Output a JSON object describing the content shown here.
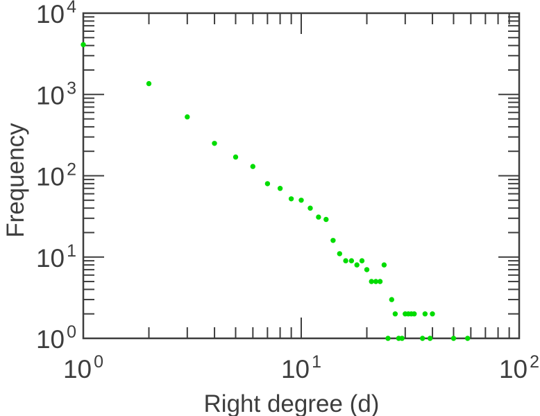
{
  "figure": {
    "background": "#ffffff",
    "axis_color": "#3d3d3d",
    "text_color": "#3d3d3d"
  },
  "chart_data": {
    "type": "scatter",
    "title": "",
    "xlabel": "Right degree (d)",
    "ylabel": "Frequency",
    "x_scale": "log",
    "y_scale": "log",
    "xlim": [
      1,
      100
    ],
    "ylim": [
      1,
      10000
    ],
    "x_tick_exponents": [
      0,
      1,
      2
    ],
    "y_tick_exponents": [
      0,
      1,
      2,
      3,
      4
    ],
    "tick_base": "10",
    "grid": false,
    "legend": null,
    "marker": {
      "shape": "circle",
      "color": "#00DC00",
      "radius_px": 3.7
    },
    "points": [
      [
        1,
        4100
      ],
      [
        2,
        1360
      ],
      [
        3,
        530
      ],
      [
        4,
        250
      ],
      [
        5,
        170
      ],
      [
        6,
        130
      ],
      [
        7,
        80
      ],
      [
        8,
        70
      ],
      [
        9,
        52
      ],
      [
        10,
        50
      ],
      [
        11,
        40
      ],
      [
        12,
        31
      ],
      [
        13,
        29
      ],
      [
        14,
        16
      ],
      [
        15,
        11
      ],
      [
        16,
        9
      ],
      [
        17,
        9
      ],
      [
        18,
        8
      ],
      [
        19,
        9
      ],
      [
        20,
        7
      ],
      [
        21,
        5
      ],
      [
        22,
        5
      ],
      [
        23,
        5
      ],
      [
        24,
        8
      ],
      [
        25,
        1
      ],
      [
        26,
        3
      ],
      [
        27,
        2
      ],
      [
        28,
        1
      ],
      [
        29,
        1
      ],
      [
        30,
        2
      ],
      [
        31,
        2
      ],
      [
        32,
        2
      ],
      [
        33,
        2
      ],
      [
        36,
        1
      ],
      [
        37,
        2
      ],
      [
        39,
        1
      ],
      [
        40,
        2
      ],
      [
        50,
        1
      ],
      [
        58,
        1
      ]
    ]
  }
}
